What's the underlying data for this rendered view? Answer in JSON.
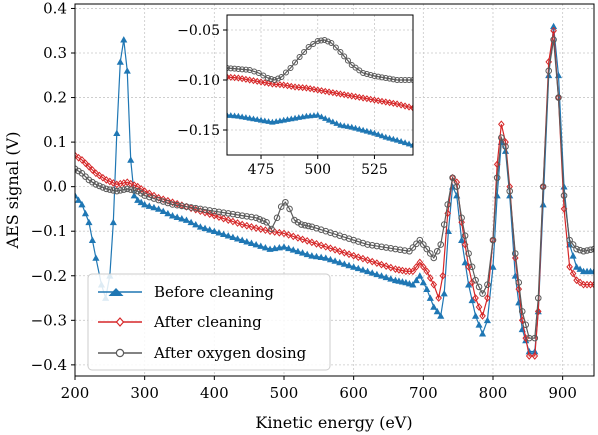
{
  "colors": {
    "before": "#1f77b4",
    "after": "#d62728",
    "oxygen": "#5a5a5a",
    "grid": "#c8c8c8",
    "legend_border": "#cccccc"
  },
  "chart_data": {
    "type": "line",
    "xlabel": "Kinetic energy (eV)",
    "ylabel": "AES signal (V)",
    "xlim": [
      200,
      945
    ],
    "ylim": [
      -0.425,
      0.41
    ],
    "xticks": [
      200,
      300,
      400,
      500,
      600,
      700,
      800,
      900
    ],
    "yticks": [
      0.4,
      0.3,
      0.2,
      0.1,
      0.0,
      -0.1,
      -0.2,
      -0.3,
      -0.4
    ],
    "xtick_labels": [
      "200",
      "300",
      "400",
      "500",
      "600",
      "700",
      "800",
      "900"
    ],
    "ytick_labels": [
      "0.4",
      "0.3",
      "0.2",
      "0.1",
      "0.0",
      "−0.1",
      "−0.2",
      "−0.3",
      "−0.4"
    ],
    "grid": true,
    "legend_position": "lower-left",
    "series": [
      {
        "name": "Before cleaning",
        "color": "#1f77b4",
        "marker": "triangle",
        "points": [
          [
            200,
            -0.02
          ],
          [
            210,
            -0.04
          ],
          [
            220,
            -0.08
          ],
          [
            230,
            -0.16
          ],
          [
            238,
            -0.22
          ],
          [
            244,
            -0.25
          ],
          [
            250,
            -0.2
          ],
          [
            255,
            -0.08
          ],
          [
            260,
            0.12
          ],
          [
            265,
            0.28
          ],
          [
            270,
            0.33
          ],
          [
            275,
            0.26
          ],
          [
            280,
            0.06
          ],
          [
            285,
            -0.02
          ],
          [
            290,
            -0.03
          ],
          [
            300,
            -0.04
          ],
          [
            320,
            -0.05
          ],
          [
            340,
            -0.065
          ],
          [
            360,
            -0.075
          ],
          [
            380,
            -0.09
          ],
          [
            400,
            -0.1
          ],
          [
            420,
            -0.11
          ],
          [
            440,
            -0.12
          ],
          [
            460,
            -0.13
          ],
          [
            480,
            -0.14
          ],
          [
            500,
            -0.135
          ],
          [
            520,
            -0.145
          ],
          [
            540,
            -0.155
          ],
          [
            560,
            -0.16
          ],
          [
            580,
            -0.17
          ],
          [
            600,
            -0.18
          ],
          [
            620,
            -0.19
          ],
          [
            640,
            -0.2
          ],
          [
            660,
            -0.21
          ],
          [
            675,
            -0.215
          ],
          [
            685,
            -0.22
          ],
          [
            695,
            -0.2
          ],
          [
            705,
            -0.23
          ],
          [
            715,
            -0.27
          ],
          [
            725,
            -0.29
          ],
          [
            730,
            -0.24
          ],
          [
            736,
            -0.1
          ],
          [
            742,
            0.0
          ],
          [
            748,
            -0.02
          ],
          [
            755,
            -0.12
          ],
          [
            765,
            -0.22
          ],
          [
            775,
            -0.29
          ],
          [
            785,
            -0.33
          ],
          [
            792,
            -0.3
          ],
          [
            800,
            -0.18
          ],
          [
            806,
            -0.02
          ],
          [
            812,
            0.1
          ],
          [
            818,
            0.08
          ],
          [
            824,
            -0.02
          ],
          [
            832,
            -0.2
          ],
          [
            842,
            -0.32
          ],
          [
            852,
            -0.37
          ],
          [
            860,
            -0.37
          ],
          [
            865,
            -0.28
          ],
          [
            872,
            -0.04
          ],
          [
            880,
            0.25
          ],
          [
            887,
            0.36
          ],
          [
            894,
            0.25
          ],
          [
            902,
            0.0
          ],
          [
            910,
            -0.13
          ],
          [
            920,
            -0.18
          ],
          [
            930,
            -0.19
          ],
          [
            945,
            -0.19
          ]
        ]
      },
      {
        "name": "After cleaning",
        "color": "#d62728",
        "marker": "diamond",
        "points": [
          [
            200,
            0.07
          ],
          [
            210,
            0.06
          ],
          [
            220,
            0.045
          ],
          [
            230,
            0.03
          ],
          [
            245,
            0.015
          ],
          [
            260,
            0.005
          ],
          [
            275,
            0.01
          ],
          [
            290,
            0.0
          ],
          [
            300,
            -0.01
          ],
          [
            320,
            -0.025
          ],
          [
            340,
            -0.035
          ],
          [
            360,
            -0.045
          ],
          [
            380,
            -0.055
          ],
          [
            400,
            -0.065
          ],
          [
            420,
            -0.075
          ],
          [
            440,
            -0.085
          ],
          [
            460,
            -0.093
          ],
          [
            480,
            -0.1
          ],
          [
            500,
            -0.105
          ],
          [
            520,
            -0.115
          ],
          [
            540,
            -0.125
          ],
          [
            560,
            -0.135
          ],
          [
            580,
            -0.145
          ],
          [
            600,
            -0.155
          ],
          [
            620,
            -0.165
          ],
          [
            640,
            -0.175
          ],
          [
            660,
            -0.185
          ],
          [
            675,
            -0.19
          ],
          [
            685,
            -0.19
          ],
          [
            695,
            -0.17
          ],
          [
            705,
            -0.19
          ],
          [
            715,
            -0.22
          ],
          [
            722,
            -0.25
          ],
          [
            728,
            -0.2
          ],
          [
            735,
            -0.06
          ],
          [
            742,
            0.02
          ],
          [
            748,
            0.01
          ],
          [
            755,
            -0.08
          ],
          [
            765,
            -0.18
          ],
          [
            775,
            -0.25
          ],
          [
            785,
            -0.29
          ],
          [
            792,
            -0.25
          ],
          [
            800,
            -0.12
          ],
          [
            806,
            0.05
          ],
          [
            812,
            0.14
          ],
          [
            818,
            0.1
          ],
          [
            824,
            0.0
          ],
          [
            832,
            -0.16
          ],
          [
            842,
            -0.3
          ],
          [
            852,
            -0.38
          ],
          [
            860,
            -0.38
          ],
          [
            865,
            -0.28
          ],
          [
            872,
            0.0
          ],
          [
            880,
            0.28
          ],
          [
            887,
            0.35
          ],
          [
            894,
            0.2
          ],
          [
            902,
            -0.05
          ],
          [
            910,
            -0.18
          ],
          [
            920,
            -0.21
          ],
          [
            930,
            -0.22
          ],
          [
            945,
            -0.22
          ]
        ]
      },
      {
        "name": "After oxygen dosing",
        "color": "#5a5a5a",
        "marker": "circle",
        "points": [
          [
            200,
            0.04
          ],
          [
            210,
            0.03
          ],
          [
            220,
            0.015
          ],
          [
            230,
            0.005
          ],
          [
            245,
            -0.005
          ],
          [
            260,
            -0.01
          ],
          [
            275,
            -0.005
          ],
          [
            290,
            -0.01
          ],
          [
            300,
            -0.02
          ],
          [
            320,
            -0.03
          ],
          [
            340,
            -0.04
          ],
          [
            360,
            -0.045
          ],
          [
            380,
            -0.05
          ],
          [
            400,
            -0.055
          ],
          [
            420,
            -0.06
          ],
          [
            440,
            -0.065
          ],
          [
            460,
            -0.07
          ],
          [
            475,
            -0.08
          ],
          [
            482,
            -0.095
          ],
          [
            490,
            -0.07
          ],
          [
            496,
            -0.045
          ],
          [
            502,
            -0.035
          ],
          [
            508,
            -0.05
          ],
          [
            515,
            -0.075
          ],
          [
            525,
            -0.085
          ],
          [
            540,
            -0.09
          ],
          [
            560,
            -0.1
          ],
          [
            580,
            -0.11
          ],
          [
            600,
            -0.12
          ],
          [
            620,
            -0.13
          ],
          [
            640,
            -0.135
          ],
          [
            660,
            -0.14
          ],
          [
            680,
            -0.145
          ],
          [
            695,
            -0.12
          ],
          [
            705,
            -0.14
          ],
          [
            715,
            -0.16
          ],
          [
            725,
            -0.13
          ],
          [
            735,
            -0.04
          ],
          [
            742,
            0.02
          ],
          [
            748,
            0.0
          ],
          [
            755,
            -0.07
          ],
          [
            765,
            -0.15
          ],
          [
            775,
            -0.21
          ],
          [
            785,
            -0.24
          ],
          [
            792,
            -0.22
          ],
          [
            800,
            -0.12
          ],
          [
            806,
            0.02
          ],
          [
            812,
            0.11
          ],
          [
            818,
            0.09
          ],
          [
            824,
            -0.01
          ],
          [
            832,
            -0.15
          ],
          [
            842,
            -0.28
          ],
          [
            852,
            -0.34
          ],
          [
            860,
            -0.34
          ],
          [
            865,
            -0.25
          ],
          [
            872,
            0.0
          ],
          [
            880,
            0.26
          ],
          [
            887,
            0.33
          ],
          [
            894,
            0.2
          ],
          [
            902,
            -0.02
          ],
          [
            910,
            -0.12
          ],
          [
            920,
            -0.14
          ],
          [
            930,
            -0.145
          ],
          [
            945,
            -0.14
          ]
        ]
      }
    ],
    "inset": {
      "xlim": [
        460,
        542
      ],
      "ylim": [
        -0.175,
        -0.035
      ],
      "xticks": [
        475,
        500,
        525
      ],
      "yticks": [
        -0.05,
        -0.1,
        -0.15
      ],
      "xtick_labels": [
        "475",
        "500",
        "525"
      ],
      "ytick_labels": [
        "−0.05",
        "−0.10",
        "−0.15"
      ],
      "grid": true,
      "series": [
        {
          "name": "Before cleaning",
          "color": "#1f77b4",
          "marker": "triangle",
          "points": [
            [
              460,
              -0.135
            ],
            [
              465,
              -0.136
            ],
            [
              470,
              -0.138
            ],
            [
              475,
              -0.14
            ],
            [
              480,
              -0.142
            ],
            [
              485,
              -0.14
            ],
            [
              490,
              -0.138
            ],
            [
              495,
              -0.136
            ],
            [
              500,
              -0.135
            ],
            [
              505,
              -0.14
            ],
            [
              510,
              -0.145
            ],
            [
              515,
              -0.147
            ],
            [
              520,
              -0.15
            ],
            [
              525,
              -0.153
            ],
            [
              530,
              -0.157
            ],
            [
              535,
              -0.16
            ],
            [
              542,
              -0.165
            ]
          ]
        },
        {
          "name": "After cleaning",
          "color": "#d62728",
          "marker": "diamond",
          "points": [
            [
              460,
              -0.097
            ],
            [
              465,
              -0.098
            ],
            [
              470,
              -0.1
            ],
            [
              475,
              -0.102
            ],
            [
              480,
              -0.104
            ],
            [
              485,
              -0.105
            ],
            [
              490,
              -0.107
            ],
            [
              495,
              -0.108
            ],
            [
              500,
              -0.11
            ],
            [
              505,
              -0.112
            ],
            [
              510,
              -0.114
            ],
            [
              515,
              -0.116
            ],
            [
              520,
              -0.118
            ],
            [
              525,
              -0.12
            ],
            [
              530,
              -0.122
            ],
            [
              535,
              -0.124
            ],
            [
              542,
              -0.128
            ]
          ]
        },
        {
          "name": "After oxygen dosing",
          "color": "#5a5a5a",
          "marker": "circle",
          "points": [
            [
              460,
              -0.088
            ],
            [
              465,
              -0.089
            ],
            [
              470,
              -0.09
            ],
            [
              474,
              -0.093
            ],
            [
              478,
              -0.098
            ],
            [
              481,
              -0.1
            ],
            [
              484,
              -0.097
            ],
            [
              488,
              -0.088
            ],
            [
              492,
              -0.077
            ],
            [
              496,
              -0.067
            ],
            [
              500,
              -0.061
            ],
            [
              503,
              -0.06
            ],
            [
              506,
              -0.063
            ],
            [
              510,
              -0.072
            ],
            [
              515,
              -0.085
            ],
            [
              520,
              -0.093
            ],
            [
              525,
              -0.096
            ],
            [
              530,
              -0.098
            ],
            [
              535,
              -0.1
            ],
            [
              542,
              -0.1
            ]
          ]
        }
      ]
    }
  }
}
